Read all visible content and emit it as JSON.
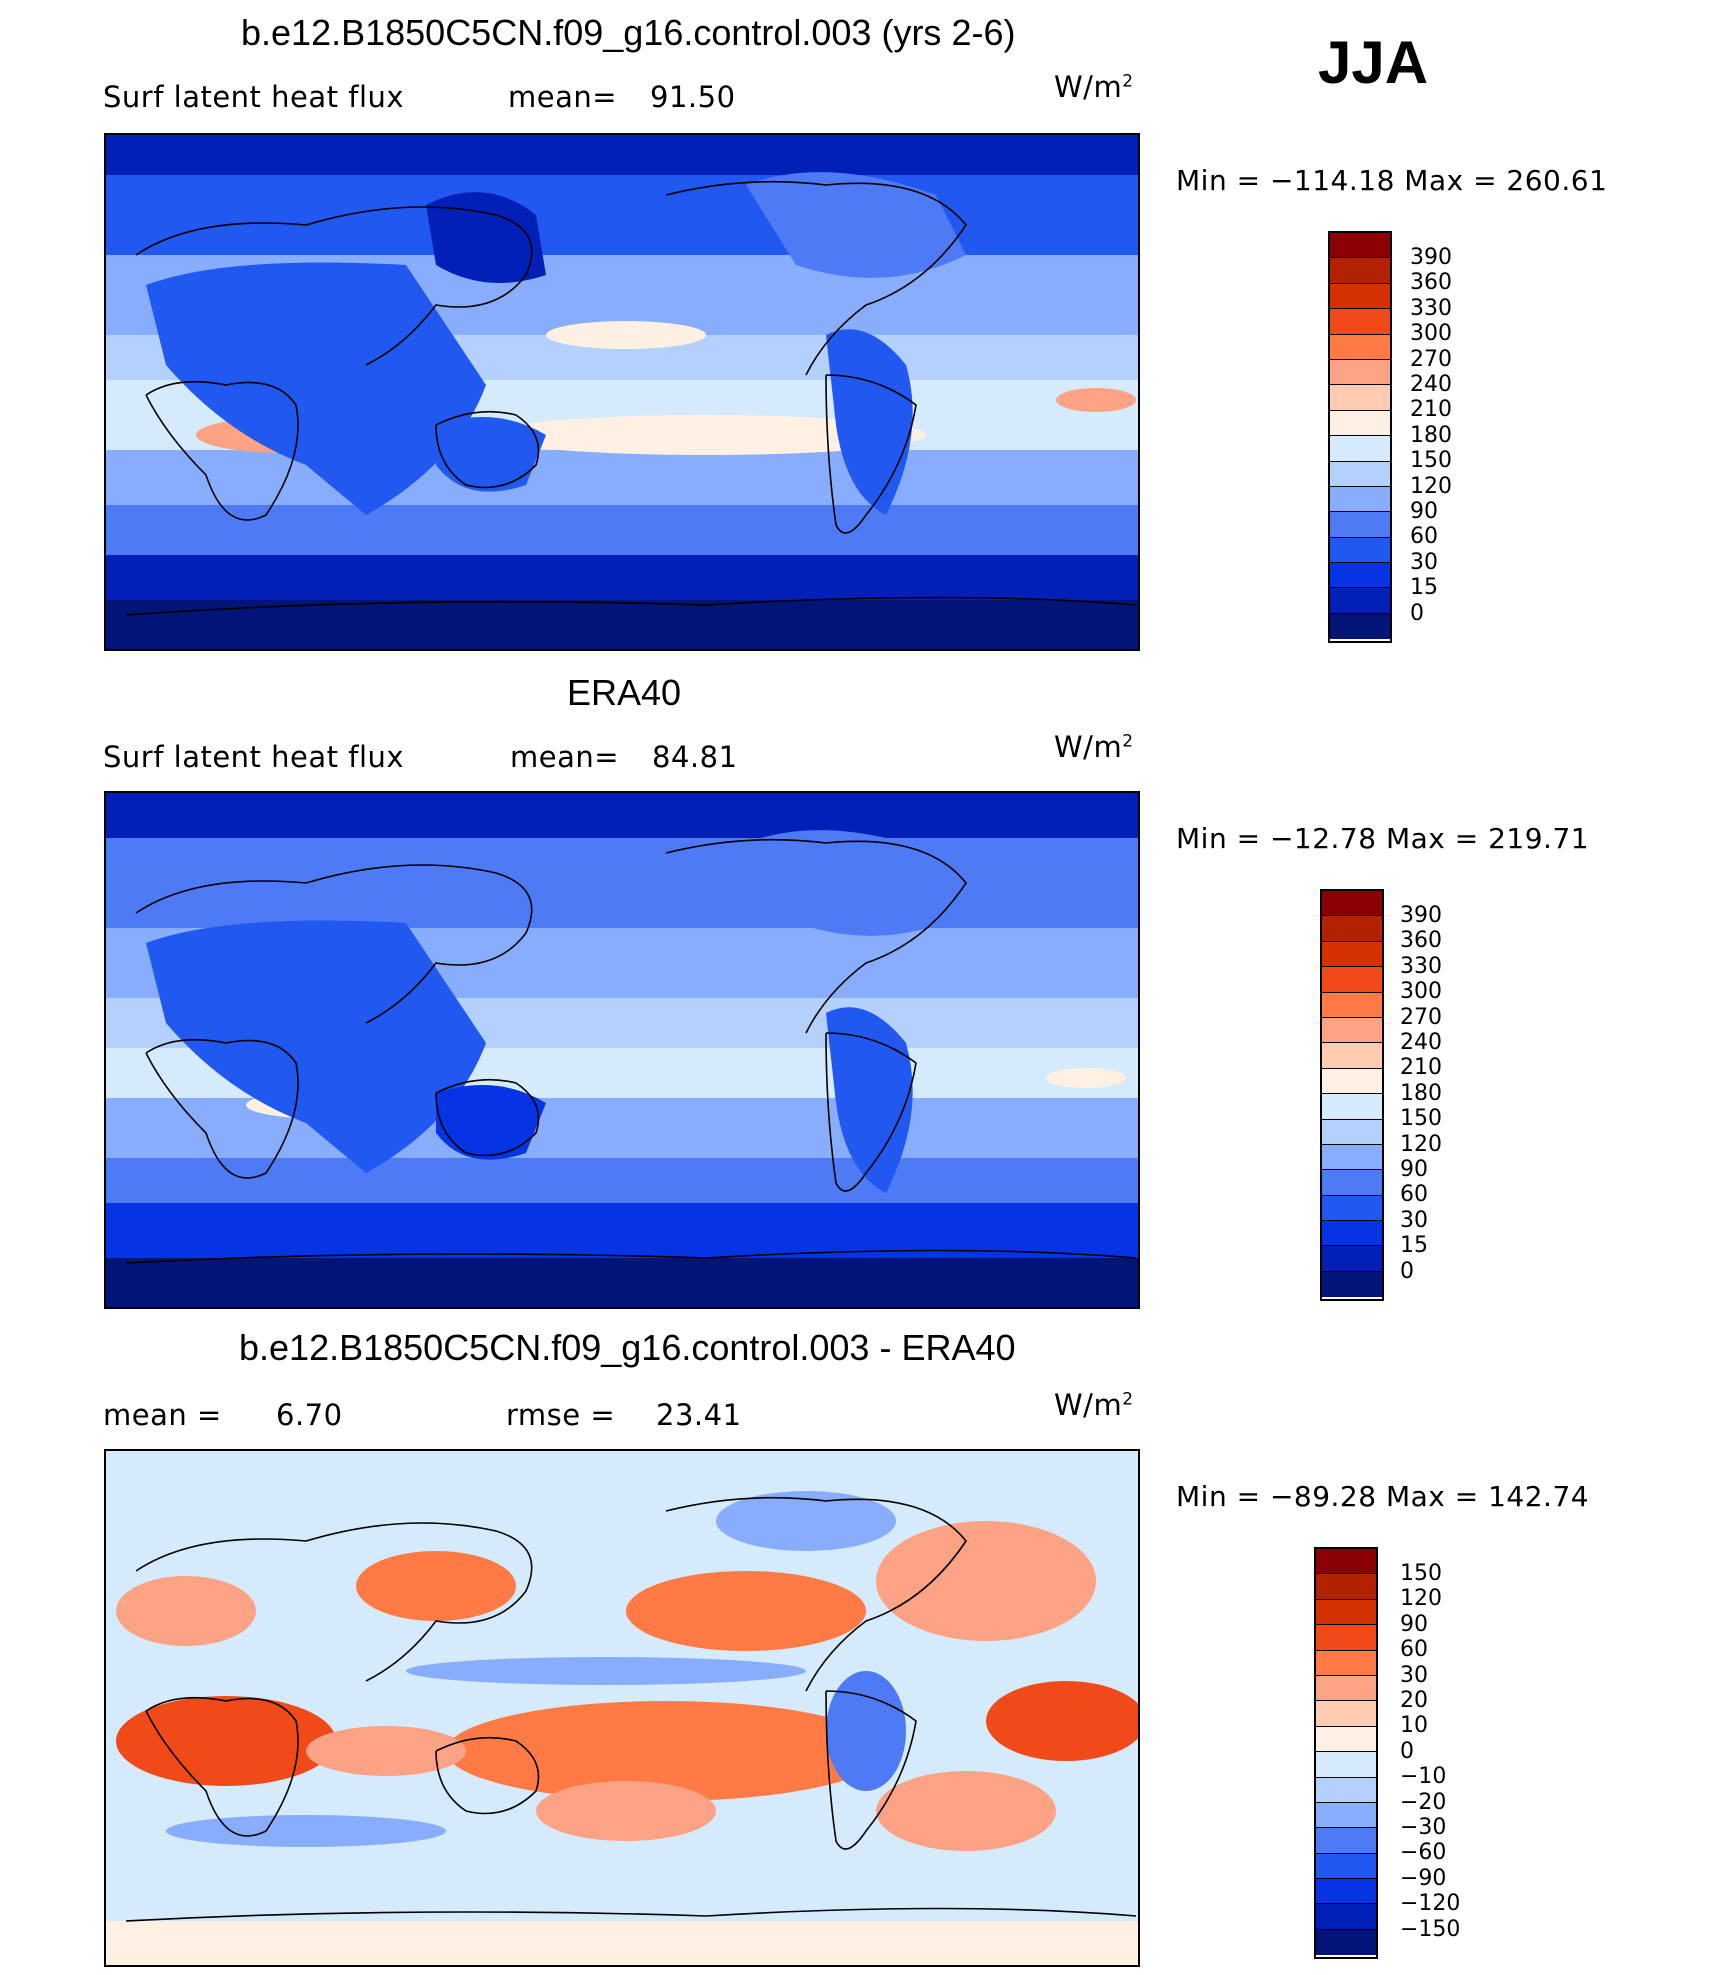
{
  "season": "JJA",
  "units_base": "W/m",
  "units_exp": "2",
  "panels": [
    {
      "title": "b.e12.B1850C5CN.f09_g16.control.003 (yrs 2-6)",
      "left_label": "Surf  latent  heat  flux",
      "stat_label": "mean=",
      "stat_value": "91.50",
      "minmax": "Min  =  −114.18  Max  =  260.61",
      "colorbar_labels": [
        "390",
        "360",
        "330",
        "300",
        "270",
        "240",
        "210",
        "180",
        "150",
        "120",
        "90",
        "60",
        "30",
        "15",
        "0"
      ]
    },
    {
      "title": "ERA40",
      "left_label": "Surf  latent  heat  flux",
      "stat_label": "mean=",
      "stat_value": "84.81",
      "minmax": "Min  =  −12.78  Max  =  219.71",
      "colorbar_labels": [
        "390",
        "360",
        "330",
        "300",
        "270",
        "240",
        "210",
        "180",
        "150",
        "120",
        "90",
        "60",
        "30",
        "15",
        "0"
      ]
    },
    {
      "title": "b.e12.B1850C5CN.f09_g16.control.003 - ERA40",
      "left_label": "mean  =",
      "left_value": "6.70",
      "stat_label": "rmse  =",
      "stat_value": "23.41",
      "minmax": "Min  =  −89.28  Max  =  142.74",
      "colorbar_labels": [
        "150",
        "120",
        "90",
        "60",
        "30",
        "20",
        "10",
        "0",
        "−10",
        "−20",
        "−30",
        "−60",
        "−90",
        "−120",
        "−150"
      ]
    }
  ],
  "colors": {
    "palette_16": [
      "#8b0000",
      "#b22200",
      "#d33200",
      "#f04a18",
      "#ff7a45",
      "#fca285",
      "#ffcbb1",
      "#fff0e4",
      "#d5ebfb",
      "#b3d1fc",
      "#87adfc",
      "#4e7af6",
      "#2158f0",
      "#0534e4",
      "#0220b8",
      "#021477"
    ]
  },
  "chart_data": [
    {
      "type": "heatmap",
      "title": "b.e12.B1850C5CN.f09_g16.control.003 (yrs 2-6)",
      "variable": "Surf latent heat flux",
      "units": "W/m2",
      "season": "JJA",
      "mean": 91.5,
      "min": -114.18,
      "max": 260.61,
      "contour_levels": [
        0,
        15,
        30,
        60,
        90,
        120,
        150,
        180,
        210,
        240,
        270,
        300,
        330,
        360,
        390
      ]
    },
    {
      "type": "heatmap",
      "title": "ERA40",
      "variable": "Surf latent heat flux",
      "units": "W/m2",
      "season": "JJA",
      "mean": 84.81,
      "min": -12.78,
      "max": 219.71,
      "contour_levels": [
        0,
        15,
        30,
        60,
        90,
        120,
        150,
        180,
        210,
        240,
        270,
        300,
        330,
        360,
        390
      ]
    },
    {
      "type": "heatmap",
      "title": "b.e12.B1850C5CN.f09_g16.control.003 - ERA40",
      "units": "W/m2",
      "season": "JJA",
      "mean": 6.7,
      "rmse": 23.41,
      "min": -89.28,
      "max": 142.74,
      "contour_levels": [
        -150,
        -120,
        -90,
        -60,
        -30,
        -20,
        -10,
        0,
        10,
        20,
        30,
        60,
        90,
        120,
        150
      ]
    }
  ]
}
